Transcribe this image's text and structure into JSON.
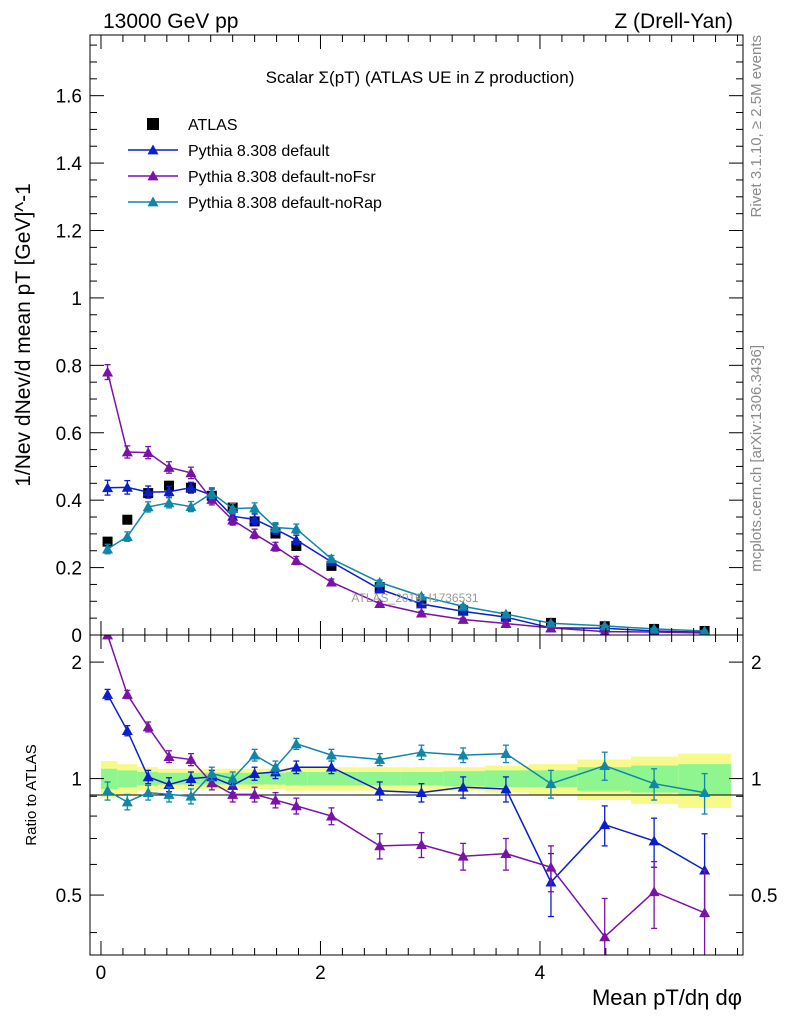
{
  "header": {
    "energy_label": "13000 GeV pp",
    "process_label": "Z (Drell-Yan)"
  },
  "side_labels": {
    "rivet": "Rivet 3.1.10, ≥ 2.5M events",
    "mcplots": "mcplots.cern.ch [arXiv:1306.3436]"
  },
  "colors": {
    "atlas": "#000000",
    "default": "#0a1fcc",
    "noFsr": "#7a12a8",
    "noRap": "#1286a8",
    "band_yellow": "#f7f98a",
    "band_green": "#8ff58f"
  },
  "chart_data": [
    {
      "type": "scatter",
      "panel": "main",
      "title": "Scalar Σ(pT) (ATLAS UE in Z production)",
      "ylabel": "1/Nev dNev/d mean pT [GeV]^-1",
      "xlabel": "Mean pT/dη dφ",
      "watermark": "ATLAS_2019_I1736531",
      "xlim": [
        -0.1,
        5.85
      ],
      "ylim": [
        0,
        1.78
      ],
      "xticks": [
        "0",
        "2",
        "4"
      ],
      "yticks": [
        "0",
        "0.2",
        "0.4",
        "0.6",
        "0.8",
        "1",
        "1.2",
        "1.4",
        "1.6"
      ],
      "x": [
        0.06,
        0.24,
        0.43,
        0.62,
        0.82,
        1.01,
        1.2,
        1.4,
        1.59,
        1.78,
        2.1,
        2.54,
        2.92,
        3.3,
        3.69,
        4.1,
        4.59,
        5.04,
        5.5
      ],
      "series": [
        {
          "name": "ATLAS",
          "key": "atlas",
          "marker": "square",
          "values": [
            0.277,
            0.342,
            0.421,
            0.443,
            0.437,
            0.413,
            0.378,
            0.337,
            0.301,
            0.264,
            0.205,
            0.142,
            0.097,
            0.073,
            0.054,
            0.036,
            0.026,
            0.018,
            0.012
          ],
          "errors": [
            0.008,
            0.008,
            0.008,
            0.008,
            0.008,
            0.008,
            0.008,
            0.008,
            0.008,
            0.008,
            0.006,
            0.005,
            0.004,
            0.003,
            0.003,
            0.002,
            0.002,
            0.002,
            0.001
          ]
        },
        {
          "name": "Pythia 8.308 default",
          "key": "default",
          "marker": "triangle",
          "values": [
            0.437,
            0.438,
            0.424,
            0.425,
            0.437,
            0.415,
            0.352,
            0.343,
            0.314,
            0.282,
            0.217,
            0.136,
            0.092,
            0.07,
            0.053,
            0.021,
            0.02,
            0.012,
            0.008
          ],
          "errors": [
            0.022,
            0.02,
            0.018,
            0.016,
            0.016,
            0.018,
            0.016,
            0.016,
            0.015,
            0.014,
            0.01,
            0.007,
            0.006,
            0.006,
            0.005,
            0.004,
            0.003,
            0.002,
            0.002
          ]
        },
        {
          "name": "Pythia 8.308 default-noFsr",
          "key": "noFsr",
          "marker": "triangle",
          "values": [
            0.78,
            0.543,
            0.541,
            0.497,
            0.481,
            0.402,
            0.341,
            0.3,
            0.262,
            0.221,
            0.157,
            0.093,
            0.065,
            0.046,
            0.034,
            0.021,
            0.01,
            0.009,
            0.006
          ],
          "errors": [
            0.022,
            0.018,
            0.018,
            0.017,
            0.017,
            0.016,
            0.015,
            0.014,
            0.013,
            0.012,
            0.009,
            0.006,
            0.005,
            0.004,
            0.004,
            0.003,
            0.002,
            0.002,
            0.002
          ]
        },
        {
          "name": "Pythia 8.308 default-noRap",
          "key": "noRap",
          "marker": "triangle",
          "values": [
            0.255,
            0.292,
            0.38,
            0.392,
            0.381,
            0.421,
            0.375,
            0.377,
            0.319,
            0.315,
            0.226,
            0.156,
            0.115,
            0.085,
            0.062,
            0.035,
            0.027,
            0.018,
            0.012
          ],
          "errors": [
            0.014,
            0.014,
            0.015,
            0.015,
            0.015,
            0.016,
            0.015,
            0.015,
            0.014,
            0.014,
            0.01,
            0.007,
            0.005,
            0.005,
            0.004,
            0.003,
            0.003,
            0.002,
            0.002
          ]
        }
      ]
    },
    {
      "type": "scatter",
      "panel": "ratio",
      "ylabel": "Ratio to ATLAS",
      "xlim": [
        -0.1,
        5.85
      ],
      "ylim": [
        0.35,
        2.35
      ],
      "yticks": [
        "0.5",
        "1",
        "2"
      ],
      "bands": {
        "edges": [
          0,
          0.15,
          0.33,
          0.52,
          0.72,
          0.91,
          1.1,
          1.3,
          1.5,
          1.68,
          1.88,
          2.33,
          2.73,
          3.12,
          3.5,
          3.9,
          4.34,
          4.83,
          5.26,
          5.74
        ],
        "yellow": [
          0.11,
          0.09,
          0.07,
          0.06,
          0.06,
          0.06,
          0.06,
          0.06,
          0.06,
          0.07,
          0.07,
          0.07,
          0.07,
          0.07,
          0.08,
          0.09,
          0.12,
          0.14,
          0.16
        ],
        "green": [
          0.06,
          0.05,
          0.04,
          0.035,
          0.035,
          0.035,
          0.035,
          0.035,
          0.035,
          0.04,
          0.04,
          0.04,
          0.04,
          0.045,
          0.05,
          0.05,
          0.07,
          0.08,
          0.09
        ]
      },
      "series": [
        {
          "name": "Pythia 8.308 default",
          "key": "default",
          "values": [
            1.65,
            1.33,
            1.01,
            0.965,
            1.0,
            1.01,
            0.96,
            1.03,
            1.04,
            1.07,
            1.07,
            0.93,
            0.92,
            0.95,
            0.94,
            0.54,
            0.76,
            0.69,
            0.58
          ],
          "errors": [
            0.05,
            0.04,
            0.04,
            0.04,
            0.04,
            0.04,
            0.04,
            0.04,
            0.04,
            0.04,
            0.04,
            0.05,
            0.05,
            0.06,
            0.07,
            0.1,
            0.09,
            0.1,
            0.14
          ]
        },
        {
          "name": "Pythia 8.308 default-noFsr",
          "key": "noFsr",
          "values": [
            2.35,
            1.65,
            1.36,
            1.14,
            1.12,
            0.975,
            0.91,
            0.91,
            0.88,
            0.85,
            0.8,
            0.67,
            0.675,
            0.63,
            0.64,
            0.59,
            0.39,
            0.51,
            0.45
          ],
          "errors": [
            0.05,
            0.04,
            0.04,
            0.04,
            0.04,
            0.04,
            0.04,
            0.04,
            0.04,
            0.04,
            0.04,
            0.05,
            0.05,
            0.05,
            0.06,
            0.08,
            0.1,
            0.1,
            0.13
          ]
        },
        {
          "name": "Pythia 8.308 default-noRap",
          "key": "noRap",
          "values": [
            0.93,
            0.87,
            0.92,
            0.91,
            0.9,
            1.03,
            1.0,
            1.15,
            1.07,
            1.23,
            1.15,
            1.12,
            1.17,
            1.15,
            1.16,
            0.97,
            1.08,
            0.97,
            0.92
          ],
          "errors": [
            0.05,
            0.04,
            0.04,
            0.04,
            0.04,
            0.04,
            0.04,
            0.04,
            0.04,
            0.04,
            0.04,
            0.04,
            0.05,
            0.05,
            0.06,
            0.08,
            0.09,
            0.09,
            0.11
          ]
        }
      ]
    }
  ]
}
